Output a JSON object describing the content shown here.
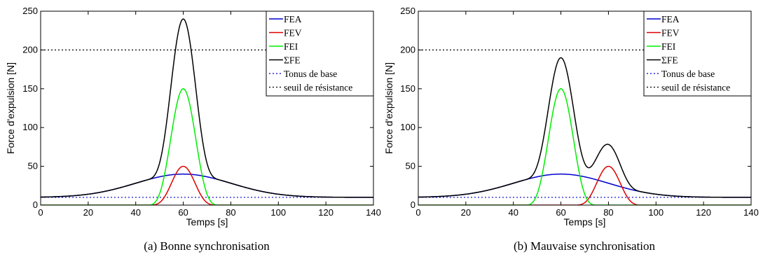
{
  "chart_data": [
    {
      "type": "line",
      "caption": "(a) Bonne synchronisation",
      "xlabel": "Temps [s]",
      "ylabel": "Force d'expulsion [N]",
      "xlim": [
        0,
        140
      ],
      "ylim": [
        0,
        250
      ],
      "xticks": [
        0,
        20,
        40,
        60,
        80,
        100,
        120,
        140
      ],
      "yticks": [
        0,
        50,
        100,
        150,
        200,
        250
      ],
      "grid": false,
      "legend_position": "top-right",
      "series": [
        {
          "name": "FEA",
          "color": "#0000cc",
          "style": "solid",
          "model": "gaussian",
          "amplitude": 30,
          "center": 60,
          "sigma": 20,
          "offset": 10
        },
        {
          "name": "FEV",
          "color": "#dd0000",
          "style": "solid",
          "model": "bump",
          "amplitude": 50,
          "center": 60,
          "halfwidth": 15
        },
        {
          "name": "FEI",
          "color": "#00ee00",
          "style": "solid",
          "model": "bump",
          "amplitude": 150,
          "center": 60,
          "halfwidth": 16
        },
        {
          "name": "ΣFE",
          "color": "#000000",
          "style": "solid",
          "model": "sum"
        },
        {
          "name": "Tonus de base",
          "color": "#0000cc",
          "style": "dotted",
          "model": "constant",
          "value": 10
        },
        {
          "name": "seuil de résistance",
          "color": "#000000",
          "style": "dotted",
          "model": "constant",
          "value": 200
        }
      ]
    },
    {
      "type": "line",
      "caption": "(b) Mauvaise synchronisation",
      "xlabel": "Temps [s]",
      "ylabel": "Force d'expulsion [N]",
      "xlim": [
        0,
        140
      ],
      "ylim": [
        0,
        250
      ],
      "xticks": [
        0,
        20,
        40,
        60,
        80,
        100,
        120,
        140
      ],
      "yticks": [
        0,
        50,
        100,
        150,
        200,
        250
      ],
      "grid": false,
      "legend_position": "top-right",
      "series": [
        {
          "name": "FEA",
          "color": "#0000cc",
          "style": "solid",
          "model": "gaussian",
          "amplitude": 30,
          "center": 60,
          "sigma": 20,
          "offset": 10
        },
        {
          "name": "FEV",
          "color": "#dd0000",
          "style": "solid",
          "model": "bump",
          "amplitude": 50,
          "center": 80,
          "halfwidth": 15
        },
        {
          "name": "FEI",
          "color": "#00ee00",
          "style": "solid",
          "model": "bump",
          "amplitude": 150,
          "center": 60,
          "halfwidth": 16
        },
        {
          "name": "ΣFE",
          "color": "#000000",
          "style": "solid",
          "model": "sum"
        },
        {
          "name": "Tonus de base",
          "color": "#0000cc",
          "style": "dotted",
          "model": "constant",
          "value": 10
        },
        {
          "name": "seuil de résistance",
          "color": "#000000",
          "style": "dotted",
          "model": "constant",
          "value": 200
        }
      ]
    }
  ]
}
